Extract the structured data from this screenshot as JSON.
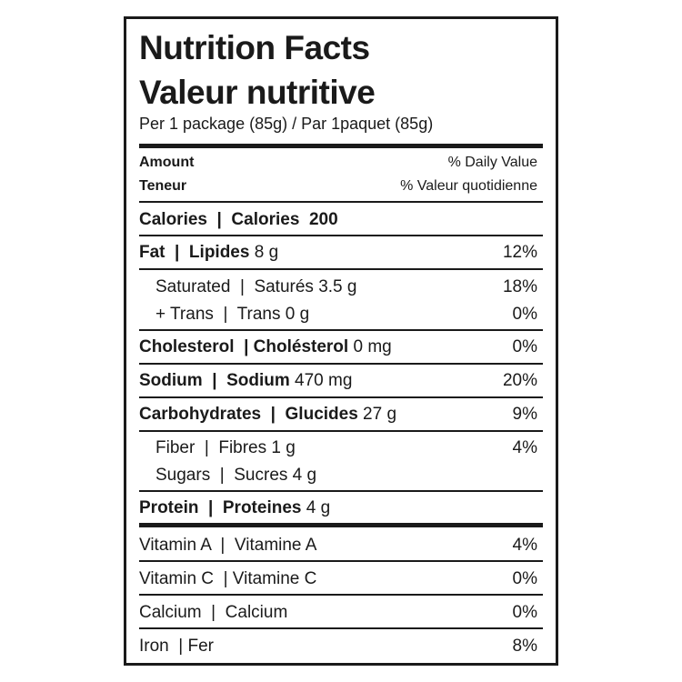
{
  "title_en": "Nutrition Facts",
  "title_fr": "Valeur nutritive",
  "serving": "Per 1 package (85g) / Par 1paquet (85g)",
  "header": {
    "amount": "Amount",
    "teneur": "Teneur",
    "dv_en": "% Daily Value",
    "dv_fr": "% Valeur quotidienne"
  },
  "calories": {
    "label": "Calories  |  Calories",
    "value": "200"
  },
  "rows": [
    {
      "label": "Fat  |  Lipides",
      "amount": " 8 g",
      "dv": "12%"
    },
    {
      "label": "Saturated  |  Saturés 3.5 g",
      "dv": "18%"
    },
    {
      "label": "+ Trans  |  Trans 0 g",
      "dv": "0%"
    },
    {
      "label": "Cholesterol  | Cholésterol",
      "amount": " 0 mg",
      "dv": "0%"
    },
    {
      "label": "Sodium  |  Sodium",
      "amount": " 470 mg",
      "dv": "20%"
    },
    {
      "label": "Carbohydrates  |  Glucides",
      "amount": " 27 g",
      "dv": "9%"
    },
    {
      "label": "Fiber  |  Fibres 1 g",
      "dv": "4%"
    },
    {
      "label": "Sugars  |  Sucres 4 g"
    },
    {
      "label": "Protein  |  Proteines",
      "amount": " 4 g"
    }
  ],
  "vitamins": [
    {
      "label": "Vitamin A  |  Vitamine A",
      "dv": "4%"
    },
    {
      "label": "Vitamin C  | Vitamine C",
      "dv": "0%"
    },
    {
      "label": "Calcium  |  Calcium",
      "dv": "0%"
    },
    {
      "label": "Iron  | Fer",
      "dv": "8%"
    }
  ]
}
